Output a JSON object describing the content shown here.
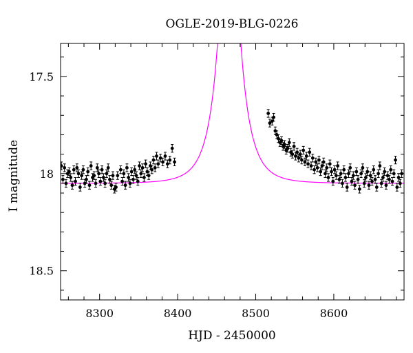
{
  "chart_data": {
    "type": "scatter",
    "title": "OGLE-2019-BLG-0226",
    "xlabel": "HJD - 2450000",
    "ylabel": "I magnitude",
    "xlim": [
      8250,
      8690
    ],
    "ylim": [
      18.65,
      17.33
    ],
    "y_inverted": true,
    "x_ticks": [
      8300,
      8400,
      8500,
      8600
    ],
    "y_ticks": [
      17.5,
      18,
      18.5
    ],
    "y_tick_labels": [
      "17.5",
      "18",
      "18.5"
    ],
    "grid": false,
    "legend": "none",
    "colors": {
      "data": "#000000",
      "model": "#ff00ff"
    },
    "model": {
      "t0": 8466,
      "u0": 0.05,
      "tE": 26,
      "baseline_mag": 18.05,
      "blend_fraction": 1.0
    },
    "series": [
      {
        "type": "errorbar",
        "points": [
          [
            8251,
            17.96,
            0.02
          ],
          [
            8253,
            18.03,
            0.02
          ],
          [
            8255,
            17.97,
            0.02
          ],
          [
            8257,
            18.05,
            0.02
          ],
          [
            8259,
            18.0,
            0.02
          ],
          [
            8261,
            17.99,
            0.02
          ],
          [
            8263,
            18.02,
            0.02
          ],
          [
            8265,
            18.06,
            0.02
          ],
          [
            8267,
            17.98,
            0.02
          ],
          [
            8269,
            18.04,
            0.02
          ],
          [
            8271,
            17.97,
            0.02
          ],
          [
            8273,
            18.0,
            0.02
          ],
          [
            8275,
            18.07,
            0.02
          ],
          [
            8277,
            18.01,
            0.02
          ],
          [
            8279,
            17.98,
            0.02
          ],
          [
            8281,
            18.05,
            0.02
          ],
          [
            8283,
            18.03,
            0.02
          ],
          [
            8285,
            17.99,
            0.02
          ],
          [
            8287,
            18.06,
            0.02
          ],
          [
            8289,
            17.96,
            0.02
          ],
          [
            8291,
            18.02,
            0.02
          ],
          [
            8293,
            18.01,
            0.02
          ],
          [
            8295,
            18.05,
            0.02
          ],
          [
            8297,
            17.97,
            0.02
          ],
          [
            8299,
            18.0,
            0.02
          ],
          [
            8301,
            18.04,
            0.02
          ],
          [
            8303,
            17.98,
            0.02
          ],
          [
            8305,
            18.02,
            0.02
          ],
          [
            8307,
            18.05,
            0.02
          ],
          [
            8309,
            18.0,
            0.02
          ],
          [
            8311,
            17.97,
            0.02
          ],
          [
            8313,
            18.03,
            0.02
          ],
          [
            8315,
            18.06,
            0.02
          ],
          [
            8317,
            18.01,
            0.02
          ],
          [
            8319,
            18.08,
            0.02
          ],
          [
            8321,
            18.07,
            0.02
          ],
          [
            8323,
            18.01,
            0.02
          ],
          [
            8327,
            17.98,
            0.02
          ],
          [
            8329,
            18.04,
            0.02
          ],
          [
            8331,
            18.0,
            0.02
          ],
          [
            8333,
            18.06,
            0.02
          ],
          [
            8335,
            17.97,
            0.02
          ],
          [
            8337,
            18.02,
            0.02
          ],
          [
            8339,
            18.05,
            0.02
          ],
          [
            8341,
            17.99,
            0.02
          ],
          [
            8343,
            18.03,
            0.02
          ],
          [
            8345,
            17.98,
            0.02
          ],
          [
            8347,
            18.01,
            0.02
          ],
          [
            8349,
            18.04,
            0.02
          ],
          [
            8351,
            17.96,
            0.02
          ],
          [
            8353,
            18.0,
            0.02
          ],
          [
            8355,
            17.97,
            0.02
          ],
          [
            8357,
            18.02,
            0.02
          ],
          [
            8359,
            17.95,
            0.02
          ],
          [
            8361,
            17.99,
            0.02
          ],
          [
            8363,
            18.01,
            0.02
          ],
          [
            8365,
            17.96,
            0.02
          ],
          [
            8367,
            17.98,
            0.02
          ],
          [
            8369,
            17.93,
            0.02
          ],
          [
            8371,
            17.97,
            0.02
          ],
          [
            8373,
            17.91,
            0.02
          ],
          [
            8375,
            17.95,
            0.02
          ],
          [
            8378,
            17.92,
            0.02
          ],
          [
            8381,
            17.94,
            0.02
          ],
          [
            8384,
            17.91,
            0.02
          ],
          [
            8387,
            17.95,
            0.02
          ],
          [
            8390,
            17.93,
            0.02
          ],
          [
            8393,
            17.87,
            0.02
          ],
          [
            8396,
            17.94,
            0.02
          ],
          [
            8516,
            17.69,
            0.02
          ],
          [
            8518,
            17.74,
            0.02
          ],
          [
            8521,
            17.73,
            0.02
          ],
          [
            8523,
            17.71,
            0.02
          ],
          [
            8525,
            17.78,
            0.02
          ],
          [
            8527,
            17.8,
            0.02
          ],
          [
            8529,
            17.82,
            0.02
          ],
          [
            8531,
            17.84,
            0.02
          ],
          [
            8533,
            17.83,
            0.02
          ],
          [
            8535,
            17.86,
            0.02
          ],
          [
            8537,
            17.85,
            0.02
          ],
          [
            8539,
            17.88,
            0.02
          ],
          [
            8541,
            17.87,
            0.02
          ],
          [
            8543,
            17.84,
            0.02
          ],
          [
            8545,
            17.89,
            0.02
          ],
          [
            8547,
            17.9,
            0.02
          ],
          [
            8549,
            17.86,
            0.02
          ],
          [
            8551,
            17.91,
            0.02
          ],
          [
            8553,
            17.89,
            0.02
          ],
          [
            8555,
            17.92,
            0.02
          ],
          [
            8557,
            17.9,
            0.02
          ],
          [
            8559,
            17.93,
            0.02
          ],
          [
            8561,
            17.88,
            0.02
          ],
          [
            8563,
            17.94,
            0.02
          ],
          [
            8565,
            17.91,
            0.02
          ],
          [
            8567,
            17.95,
            0.02
          ],
          [
            8569,
            17.89,
            0.02
          ],
          [
            8571,
            17.96,
            0.02
          ],
          [
            8573,
            17.92,
            0.02
          ],
          [
            8575,
            17.98,
            0.02
          ],
          [
            8577,
            17.94,
            0.02
          ],
          [
            8579,
            17.97,
            0.02
          ],
          [
            8581,
            17.93,
            0.02
          ],
          [
            8583,
            17.99,
            0.02
          ],
          [
            8585,
            17.96,
            0.02
          ],
          [
            8587,
            17.94,
            0.02
          ],
          [
            8589,
            18.0,
            0.02
          ],
          [
            8591,
            17.97,
            0.02
          ],
          [
            8593,
            18.02,
            0.02
          ],
          [
            8595,
            17.95,
            0.02
          ],
          [
            8597,
            17.99,
            0.02
          ],
          [
            8599,
            18.04,
            0.02
          ],
          [
            8601,
            17.98,
            0.02
          ],
          [
            8603,
            18.01,
            0.02
          ],
          [
            8605,
            17.96,
            0.02
          ],
          [
            8607,
            18.03,
            0.02
          ],
          [
            8609,
            18.0,
            0.02
          ],
          [
            8611,
            18.05,
            0.02
          ],
          [
            8613,
            17.98,
            0.02
          ],
          [
            8615,
            18.02,
            0.02
          ],
          [
            8617,
            18.07,
            0.02
          ],
          [
            8619,
            18.0,
            0.02
          ],
          [
            8621,
            17.97,
            0.02
          ],
          [
            8623,
            18.04,
            0.02
          ],
          [
            8625,
            18.01,
            0.02
          ],
          [
            8627,
            18.06,
            0.02
          ],
          [
            8629,
            17.99,
            0.02
          ],
          [
            8631,
            18.03,
            0.02
          ],
          [
            8633,
            18.08,
            0.02
          ],
          [
            8635,
            18.0,
            0.02
          ],
          [
            8637,
            17.97,
            0.02
          ],
          [
            8639,
            18.05,
            0.02
          ],
          [
            8641,
            18.02,
            0.02
          ],
          [
            8643,
            17.99,
            0.02
          ],
          [
            8645,
            18.06,
            0.02
          ],
          [
            8647,
            18.01,
            0.02
          ],
          [
            8649,
            18.04,
            0.02
          ],
          [
            8651,
            17.98,
            0.02
          ],
          [
            8653,
            18.03,
            0.02
          ],
          [
            8655,
            18.07,
            0.02
          ],
          [
            8657,
            18.0,
            0.02
          ],
          [
            8659,
            17.96,
            0.02
          ],
          [
            8661,
            18.05,
            0.02
          ],
          [
            8663,
            18.02,
            0.02
          ],
          [
            8665,
            17.99,
            0.02
          ],
          [
            8667,
            18.06,
            0.02
          ],
          [
            8669,
            18.01,
            0.02
          ],
          [
            8671,
            18.03,
            0.02
          ],
          [
            8673,
            17.98,
            0.02
          ],
          [
            8675,
            18.04,
            0.02
          ],
          [
            8677,
            18.0,
            0.02
          ],
          [
            8679,
            17.93,
            0.02
          ],
          [
            8681,
            18.07,
            0.02
          ],
          [
            8683,
            18.02,
            0.02
          ],
          [
            8685,
            18.05,
            0.02
          ],
          [
            8687,
            18.0,
            0.02
          ]
        ]
      }
    ]
  }
}
